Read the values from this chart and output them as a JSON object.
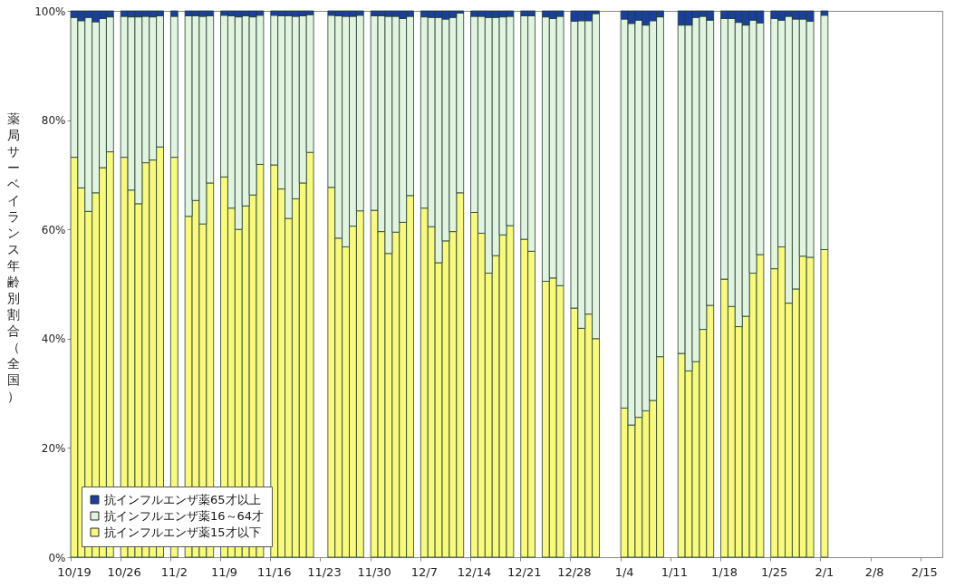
{
  "chart_data": {
    "type": "bar",
    "stacked": true,
    "ylabel": "薬局サーベイランス年齢別割合（全国）",
    "legend": "bottom left",
    "categories": [
      "10/19",
      null,
      null,
      null,
      null,
      null,
      null,
      "10/26",
      null,
      null,
      null,
      null,
      null,
      null,
      "11/2",
      null,
      null,
      null,
      null,
      null,
      null,
      "11/9",
      null,
      null,
      null,
      null,
      null,
      null,
      "11/16",
      null,
      null,
      null,
      null,
      null,
      null,
      "11/23",
      null,
      null,
      null,
      null,
      null,
      null,
      "11/30",
      null,
      null,
      null,
      null,
      null,
      null,
      "12/7",
      null,
      null,
      null,
      null,
      null,
      null,
      "12/14",
      null,
      null,
      null,
      null,
      null,
      null,
      "12/21",
      null,
      null,
      null,
      null,
      null,
      null,
      "12/28",
      null,
      null,
      null,
      null,
      null,
      null,
      "1/4",
      null,
      null,
      null,
      null,
      null,
      null,
      "1/11",
      null,
      null,
      null,
      null,
      null,
      null,
      "1/18",
      null,
      null,
      null,
      null,
      null,
      null,
      "1/25",
      null,
      null,
      null,
      null,
      null,
      null,
      "2/1",
      null,
      null,
      null,
      null,
      null,
      null,
      "2/8",
      null,
      null,
      null,
      null,
      null,
      null,
      "2/15",
      null,
      null
    ],
    "ylim": [
      0,
      100
    ],
    "yticks": [
      {
        "value": 0,
        "label": "0%"
      },
      {
        "value": 20,
        "label": "20%"
      },
      {
        "value": 40,
        "label": "40%"
      },
      {
        "value": 60,
        "label": "60%"
      },
      {
        "value": 80,
        "label": "80%"
      },
      {
        "value": 100,
        "label": "100%"
      }
    ],
    "series": [
      {
        "name": "抗インフルエンザ薬15才以下",
        "color": "#f9f97c",
        "values": [
          73.2,
          67.6,
          63.3,
          66.7,
          71.3,
          74.2,
          null,
          73.2,
          67.2,
          64.7,
          72.2,
          72.7,
          75.1,
          null,
          73.2,
          null,
          62.4,
          65.3,
          61.0,
          68.5,
          null,
          69.6,
          63.9,
          60.0,
          64.3,
          66.3,
          71.9,
          null,
          71.8,
          67.4,
          62.0,
          65.6,
          68.5,
          74.1,
          null,
          null,
          67.7,
          58.4,
          56.8,
          60.6,
          63.4,
          null,
          63.5,
          59.6,
          55.6,
          59.5,
          61.3,
          66.2,
          null,
          63.9,
          60.5,
          53.9,
          57.9,
          59.6,
          66.7,
          null,
          63.1,
          59.3,
          52.0,
          55.2,
          59.0,
          60.7,
          null,
          58.2,
          56.0,
          null,
          50.5,
          51.1,
          49.7,
          null,
          45.6,
          41.9,
          44.5,
          40.0,
          null,
          null,
          null,
          27.3,
          24.2,
          25.6,
          26.8,
          28.7,
          36.7,
          null,
          null,
          37.3,
          34.1,
          35.8,
          41.7,
          46.1,
          null,
          50.9,
          45.9,
          42.2,
          44.1,
          52.0,
          55.4,
          null,
          52.8,
          56.8,
          46.5,
          49.1,
          55.1,
          54.9,
          null,
          56.3,
          null,
          null,
          null,
          null,
          null,
          null,
          null,
          null,
          null,
          null,
          null,
          null,
          null,
          null,
          null,
          null
        ]
      },
      {
        "name": "抗インフルエンザ薬16～64才",
        "color": "#e2f4df",
        "values": [
          25.6,
          30.6,
          35.5,
          31.3,
          27.3,
          24.7,
          null,
          25.8,
          31.7,
          34.2,
          26.8,
          26.2,
          24.0,
          null,
          25.8,
          null,
          36.7,
          33.8,
          38.0,
          30.6,
          null,
          29.6,
          35.2,
          38.9,
          34.8,
          32.6,
          27.3,
          null,
          27.4,
          31.7,
          37.1,
          33.4,
          30.6,
          25.2,
          null,
          null,
          31.5,
          40.7,
          42.2,
          38.4,
          35.8,
          null,
          35.6,
          39.5,
          43.4,
          39.5,
          37.3,
          32.8,
          null,
          35.0,
          38.3,
          44.9,
          40.6,
          39.2,
          32.9,
          null,
          35.9,
          39.7,
          46.8,
          43.6,
          39.9,
          38.3,
          null,
          40.9,
          43.1,
          null,
          48.4,
          47.5,
          49.3,
          null,
          52.5,
          56.3,
          53.7,
          59.5,
          null,
          null,
          null,
          71.2,
          73.5,
          72.7,
          70.6,
          69.5,
          62.2,
          null,
          null,
          60.1,
          63.3,
          63.0,
          57.3,
          52.2,
          null,
          47.7,
          52.7,
          55.7,
          53.3,
          46.3,
          42.4,
          null,
          45.8,
          41.5,
          52.5,
          49.4,
          43.4,
          43.2,
          null,
          42.9,
          null,
          null,
          null,
          null,
          null,
          null,
          null,
          null,
          null,
          null,
          null,
          null,
          null,
          null,
          null,
          null
        ]
      },
      {
        "name": "抗インフルエンザ薬65才以上",
        "color": "#1a3f9e",
        "values": [
          1.2,
          1.8,
          1.2,
          2.0,
          1.4,
          1.1,
          null,
          1.0,
          1.1,
          1.1,
          1.0,
          1.1,
          0.9,
          null,
          1.0,
          null,
          0.9,
          0.9,
          1.0,
          0.9,
          null,
          0.8,
          0.9,
          1.1,
          0.9,
          1.1,
          0.8,
          null,
          0.8,
          0.9,
          0.9,
          1.0,
          0.9,
          0.7,
          null,
          null,
          0.8,
          0.9,
          1.0,
          1.0,
          0.8,
          null,
          0.9,
          0.9,
          1.0,
          1.0,
          1.4,
          1.0,
          null,
          1.1,
          1.2,
          1.2,
          1.5,
          1.2,
          0.4,
          null,
          1.0,
          1.0,
          1.2,
          1.2,
          1.1,
          1.0,
          null,
          0.9,
          0.9,
          null,
          1.1,
          1.4,
          1.0,
          null,
          1.9,
          1.8,
          1.8,
          0.5,
          null,
          null,
          null,
          1.5,
          2.3,
          1.7,
          2.6,
          1.8,
          1.1,
          null,
          null,
          2.6,
          2.6,
          1.2,
          1.0,
          1.7,
          null,
          1.4,
          1.4,
          2.1,
          2.6,
          1.7,
          2.2,
          null,
          1.4,
          1.7,
          1.0,
          1.5,
          1.5,
          1.9,
          null,
          0.8,
          null,
          null,
          null,
          null,
          null,
          null,
          null,
          null,
          null,
          null,
          null,
          null,
          null,
          null,
          null,
          null
        ]
      }
    ]
  }
}
